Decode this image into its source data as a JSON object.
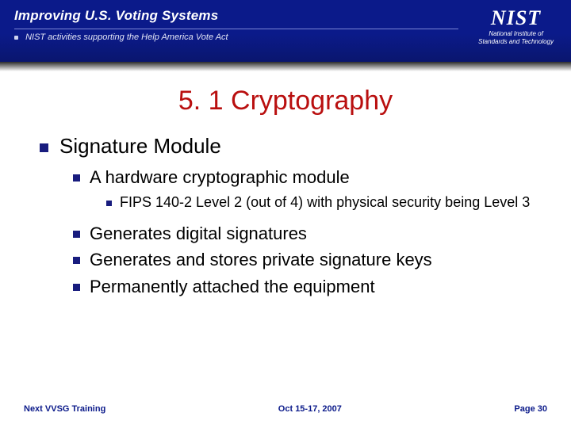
{
  "colors": {
    "header_bg": "#0b1a8a",
    "accent_red": "#b90f0f",
    "bullet_blue": "#181c7e",
    "footer_text": "#0b1a8a",
    "body_text": "#000000",
    "background": "#ffffff"
  },
  "header": {
    "title": "Improving U.S. Voting Systems",
    "subtitle": "NIST activities supporting the Help America Vote Act",
    "logo_text": "NIST",
    "logo_tag_line1": "National Institute of",
    "logo_tag_line2": "Standards and Technology"
  },
  "slide": {
    "title": "5. 1 Cryptography",
    "lvl1": "Signature Module",
    "lvl2": {
      "item1": "A hardware cryptographic module",
      "item2": "Generates digital signatures",
      "item3": "Generates and stores private signature keys",
      "item4": "Permanently attached the equipment"
    },
    "lvl3": {
      "item1": "FIPS 140-2 Level 2 (out of 4) with physical security being Level 3"
    }
  },
  "footer": {
    "left": "Next VVSG Training",
    "center": "Oct 15-17, 2007",
    "right": "Page 30"
  }
}
